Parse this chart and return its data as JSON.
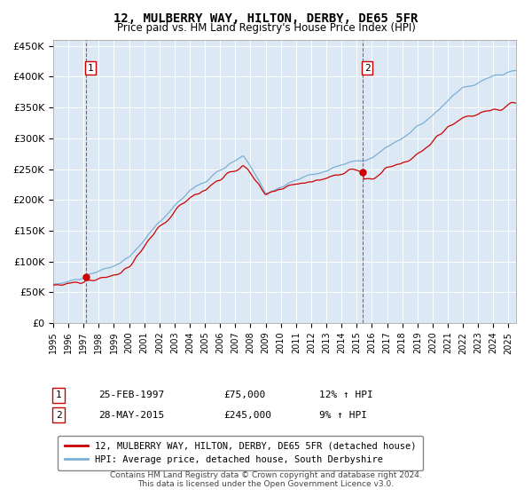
{
  "title": "12, MULBERRY WAY, HILTON, DERBY, DE65 5FR",
  "subtitle": "Price paid vs. HM Land Registry's House Price Index (HPI)",
  "background_color": "#ffffff",
  "plot_bg_color": "#dce9f5",
  "hpi_color": "#7bafd4",
  "price_color": "#cc0000",
  "vline_color": "#cc0000",
  "sale1_date": 1997.15,
  "sale1_price": 75000,
  "sale1_label": "1",
  "sale2_date": 2015.4,
  "sale2_price": 245000,
  "sale2_label": "2",
  "xmin": 1995,
  "xmax": 2025.5,
  "ymin": 0,
  "ymax": 460000,
  "yticks": [
    0,
    50000,
    100000,
    150000,
    200000,
    250000,
    300000,
    350000,
    400000,
    450000
  ],
  "ytick_labels": [
    "£0",
    "£50K",
    "£100K",
    "£150K",
    "£200K",
    "£250K",
    "£300K",
    "£350K",
    "£400K",
    "£450K"
  ],
  "xticks": [
    1995,
    1996,
    1997,
    1998,
    1999,
    2000,
    2001,
    2002,
    2003,
    2004,
    2005,
    2006,
    2007,
    2008,
    2009,
    2010,
    2011,
    2012,
    2013,
    2014,
    2015,
    2016,
    2017,
    2018,
    2019,
    2020,
    2021,
    2022,
    2023,
    2024,
    2025
  ],
  "legend_line1": "12, MULBERRY WAY, HILTON, DERBY, DE65 5FR (detached house)",
  "legend_line2": "HPI: Average price, detached house, South Derbyshire",
  "annotation1_num": "1",
  "annotation1_date": "25-FEB-1997",
  "annotation1_price": "£75,000",
  "annotation1_hpi": "12% ↑ HPI",
  "annotation2_num": "2",
  "annotation2_date": "28-MAY-2015",
  "annotation2_price": "£245,000",
  "annotation2_hpi": "9% ↑ HPI",
  "footer": "Contains HM Land Registry data © Crown copyright and database right 2024.\nThis data is licensed under the Open Government Licence v3.0."
}
